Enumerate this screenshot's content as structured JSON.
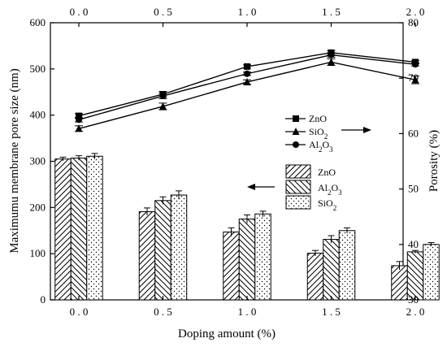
{
  "chart_data": {
    "type": "bar",
    "categories": [
      "0.0",
      "0.5",
      "1.0",
      "1.5",
      "2.0"
    ],
    "xlabel": "Doping amount (%)",
    "ylabel_left": "Maximumu membrane pore size (nm)",
    "ylabel_right": "Porosity (%)",
    "ylim_left": [
      0,
      600
    ],
    "ylim_right": [
      30,
      80
    ],
    "yticks_left": [
      0,
      100,
      200,
      300,
      400,
      500,
      600
    ],
    "yticks_right": [
      30,
      40,
      50,
      60,
      70,
      80
    ],
    "bar_series": [
      {
        "name": "ZnO",
        "pattern": "diagonal-forward",
        "values": [
          305,
          191,
          147,
          101,
          74
        ],
        "errors": [
          4,
          8,
          9,
          6,
          9
        ]
      },
      {
        "name": "Al2O3",
        "pattern": "diagonal-back",
        "values": [
          307,
          215,
          175,
          131,
          104
        ],
        "errors": [
          5,
          8,
          9,
          8,
          3
        ]
      },
      {
        "name": "SiO2",
        "pattern": "dots",
        "values": [
          311,
          227,
          186,
          150,
          120
        ],
        "errors": [
          6,
          9,
          6,
          6,
          4
        ]
      }
    ],
    "line_series": [
      {
        "name": "ZnO",
        "marker": "square",
        "values": [
          63.2,
          67.1,
          72.1,
          74.6,
          72.9
        ],
        "errors": [
          0.4,
          0.5,
          0.3,
          0.4,
          0.3
        ]
      },
      {
        "name": "SiO2",
        "marker": "triangle",
        "values": [
          60.9,
          64.9,
          69.3,
          72.9,
          69.7
        ],
        "errors": [
          0.5,
          0.6,
          0.4,
          0.6,
          0.7
        ]
      },
      {
        "name": "Al2O3",
        "marker": "circle",
        "values": [
          62.5,
          66.8,
          70.8,
          74.2,
          72.5
        ],
        "errors": [
          0.4,
          0.5,
          0.3,
          0.4,
          0.3
        ]
      }
    ],
    "line_legend": {
      "labels": [
        "ZnO",
        "SiO2",
        "Al2O3"
      ],
      "arrow": "right"
    },
    "bar_legend": {
      "labels": [
        "ZnO",
        "Al2O3",
        "SiO2"
      ],
      "arrow": "left"
    },
    "grid": false
  }
}
